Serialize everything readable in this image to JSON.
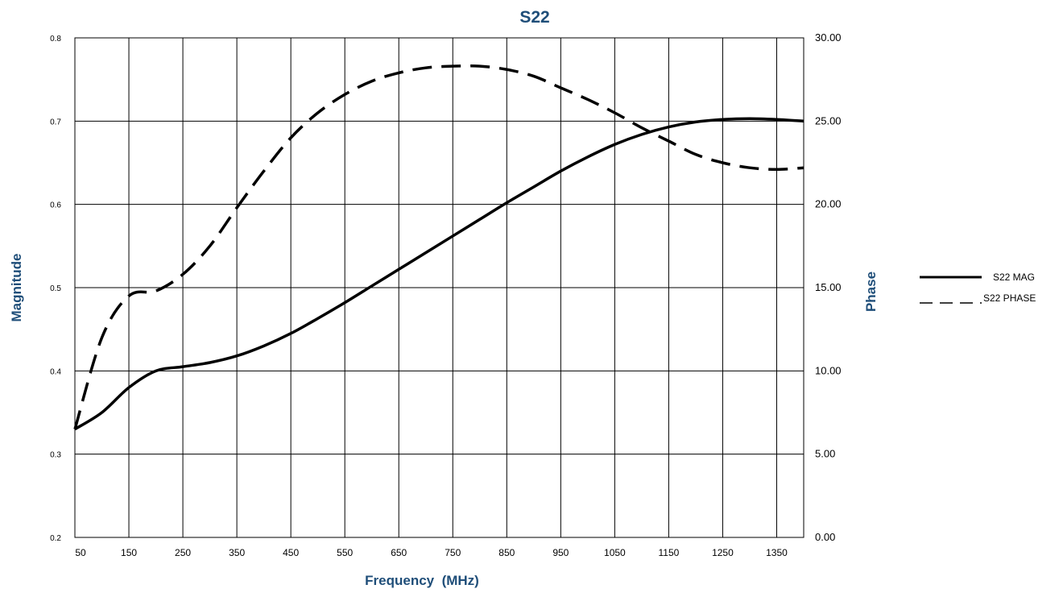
{
  "chart_data": {
    "type": "line",
    "title": "S22",
    "xlabel": "Frequency  (MHz)",
    "ylabel_left": "Magnitude",
    "ylabel_right": "Phase",
    "xlim": [
      50,
      1400
    ],
    "x_ticks": [
      {
        "value": 50,
        "label": "50"
      },
      {
        "value": 150,
        "label": "150"
      },
      {
        "value": 250,
        "label": "250"
      },
      {
        "value": 350,
        "label": "350"
      },
      {
        "value": 450,
        "label": "450"
      },
      {
        "value": 550,
        "label": "550"
      },
      {
        "value": 650,
        "label": "650"
      },
      {
        "value": 750,
        "label": "750"
      },
      {
        "value": 850,
        "label": "850"
      },
      {
        "value": 950,
        "label": "950"
      },
      {
        "value": 1050,
        "label": "1050"
      },
      {
        "value": 1150,
        "label": "1150"
      },
      {
        "value": 1250,
        "label": "1250"
      },
      {
        "value": 1350,
        "label": "1350"
      }
    ],
    "vgrid_x": [
      150,
      250,
      350,
      450,
      550,
      650,
      750,
      850,
      950,
      1050,
      1150,
      1250,
      1350
    ],
    "ylim_left": [
      0.2,
      0.8
    ],
    "y_ticks_left": [
      "0.2",
      "0.3",
      "0.4",
      "0.5",
      "0.6",
      "0.7",
      "0.8"
    ],
    "ylim_right": [
      0,
      30
    ],
    "y_ticks_right": [
      "0.00",
      "5.00",
      "10.00",
      "15.00",
      "20.00",
      "25.00",
      "30.00"
    ],
    "grid": true,
    "legend_position": "right",
    "series": [
      {
        "name": "S22 MAG",
        "axis": "left",
        "style": "solid",
        "x": [
          50,
          100,
          150,
          200,
          250,
          300,
          350,
          400,
          450,
          500,
          550,
          600,
          650,
          700,
          750,
          800,
          850,
          900,
          950,
          1000,
          1050,
          1100,
          1150,
          1200,
          1250,
          1300,
          1350,
          1400
        ],
        "values": [
          0.33,
          0.35,
          0.38,
          0.4,
          0.405,
          0.41,
          0.418,
          0.43,
          0.445,
          0.463,
          0.482,
          0.502,
          0.522,
          0.542,
          0.562,
          0.582,
          0.602,
          0.621,
          0.64,
          0.657,
          0.672,
          0.684,
          0.693,
          0.699,
          0.702,
          0.703,
          0.702,
          0.7
        ]
      },
      {
        "name": "S22 PHASE",
        "axis": "right",
        "style": "dashed",
        "x": [
          50,
          100,
          150,
          200,
          250,
          300,
          350,
          400,
          450,
          500,
          550,
          600,
          650,
          700,
          750,
          800,
          850,
          900,
          950,
          1000,
          1050,
          1100,
          1150,
          1200,
          1250,
          1300,
          1350,
          1400
        ],
        "values": [
          6.5,
          12.0,
          14.5,
          14.8,
          15.8,
          17.5,
          19.8,
          22.0,
          24.0,
          25.5,
          26.6,
          27.4,
          27.9,
          28.2,
          28.3,
          28.3,
          28.1,
          27.7,
          27.0,
          26.3,
          25.5,
          24.6,
          23.8,
          23.0,
          22.5,
          22.2,
          22.1,
          22.2
        ]
      }
    ]
  },
  "colors": {
    "title": "#1f4e79",
    "axis_label": "#1f4e79",
    "line": "#000000",
    "grid": "#000000"
  }
}
